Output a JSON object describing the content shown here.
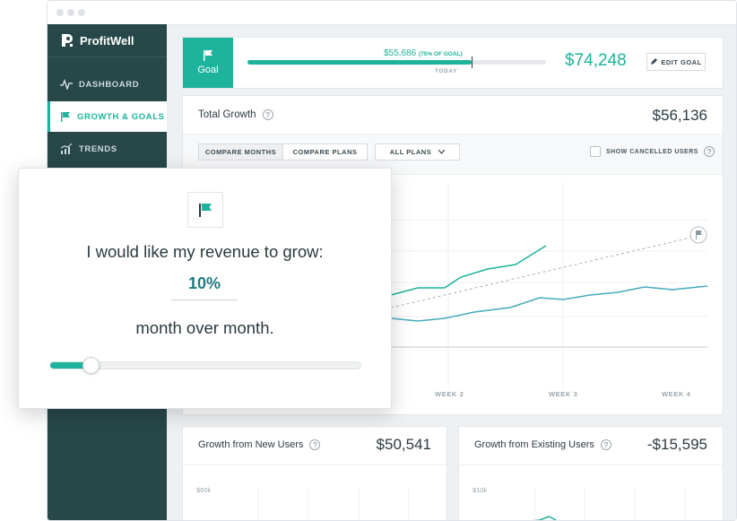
{
  "app": {
    "name": "ProfitWell"
  },
  "sidebar": {
    "items": [
      {
        "label": "DASHBOARD"
      },
      {
        "label": "GROWTH & GOALS"
      },
      {
        "label": "TRENDS"
      }
    ]
  },
  "goal": {
    "badge_label": "Goal",
    "progress_text": "$55,686",
    "progress_note": "(75% OF GOAL)",
    "progress_fraction": 0.75,
    "today_label": "TODAY",
    "target_value": "$74,248",
    "edit_label": "EDIT GOAL"
  },
  "total_growth": {
    "title": "Total Growth",
    "value": "$56,136",
    "tabs": [
      {
        "label": "COMPARE MONTHS"
      },
      {
        "label": "COMPARE PLANS"
      }
    ],
    "plans_select": "ALL PLANS",
    "show_cancelled_label": "SHOW CANCELLED USERS",
    "week_labels": [
      "WEEK 2",
      "WEEK 3",
      "WEEK 4"
    ]
  },
  "new_users": {
    "title": "Growth from New Users",
    "value": "$50,541",
    "tick": "$60k"
  },
  "existing_users": {
    "title": "Growth from Existing Users",
    "value": "-$15,595",
    "tick": "$10k"
  },
  "modal": {
    "prompt": "I would like my revenue to grow:",
    "value": "10%",
    "suffix": "month over month.",
    "slider_fraction": 0.1
  },
  "colors": {
    "accent": "#1db39c",
    "sidebar": "#274749",
    "line_secondary": "#45aabb"
  },
  "icons": {
    "flag": "flag-icon",
    "pulse": "pulse-icon",
    "trends": "trends-icon",
    "pencil": "pencil-icon",
    "help": "help-icon",
    "chevron": "chevron-down-icon"
  }
}
